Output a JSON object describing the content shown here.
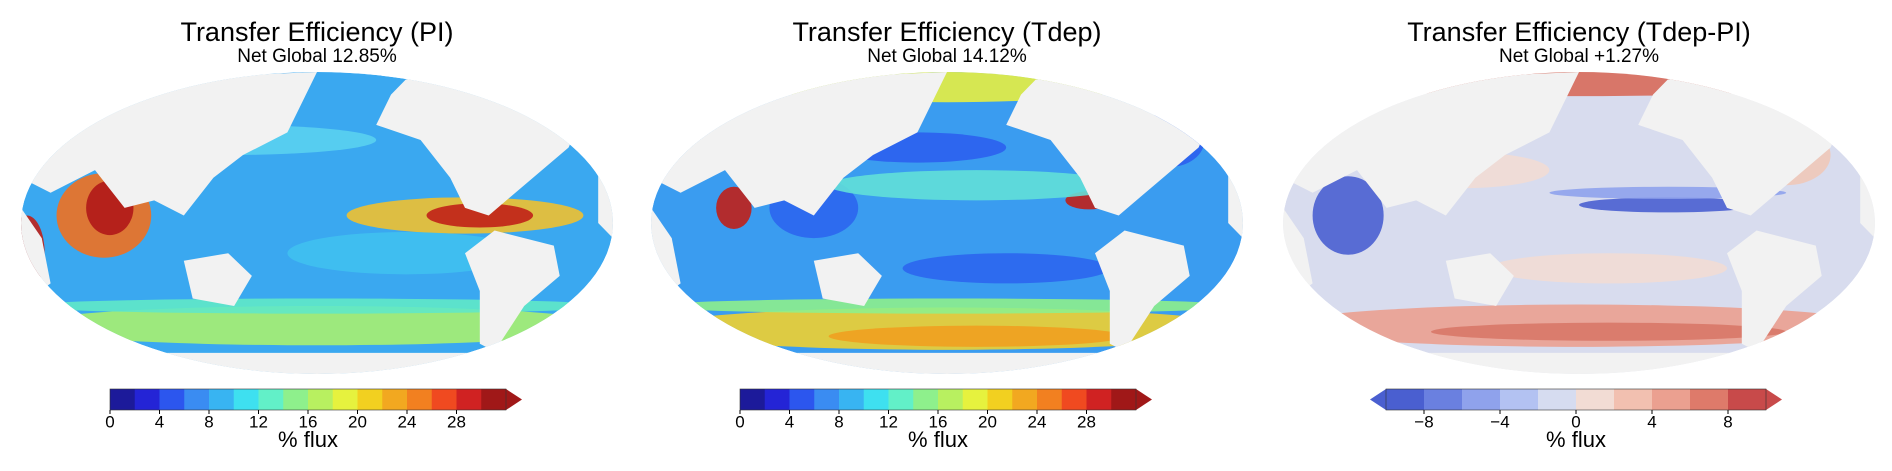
{
  "panels": [
    {
      "title": "Transfer Efficiency (PI)",
      "subtitle": "Net Global 12.85%",
      "colorbar": {
        "label": "% flux",
        "lim": [
          0,
          32
        ],
        "ticks": [
          0,
          4,
          8,
          12,
          16,
          20,
          24,
          28
        ],
        "extend": "max",
        "colors": [
          "#1c1a9a",
          "#2424d6",
          "#2c56ee",
          "#3a8cf2",
          "#38b4f2",
          "#3ee0f0",
          "#62f0c8",
          "#8ef08c",
          "#b8f060",
          "#e6f23e",
          "#f2d020",
          "#f2a820",
          "#f28020",
          "#f04a20",
          "#d02222",
          "#a01818"
        ]
      }
    },
    {
      "title": "Transfer Efficiency (Tdep)",
      "subtitle": "Net Global 14.12%",
      "colorbar": {
        "label": "% flux",
        "lim": [
          0,
          32
        ],
        "ticks": [
          0,
          4,
          8,
          12,
          16,
          20,
          24,
          28
        ],
        "extend": "max",
        "colors": [
          "#1c1a9a",
          "#2424d6",
          "#2c56ee",
          "#3a8cf2",
          "#38b4f2",
          "#3ee0f0",
          "#62f0c8",
          "#8ef08c",
          "#b8f060",
          "#e6f23e",
          "#f2d020",
          "#f2a820",
          "#f28020",
          "#f04a20",
          "#d02222",
          "#a01818"
        ]
      }
    },
    {
      "title": "Transfer Efficiency (Tdep-PI)",
      "subtitle": "Net Global +1.27%",
      "colorbar": {
        "label": "% flux",
        "lim": [
          -10,
          10
        ],
        "ticks": [
          {
            "value": -8,
            "label": "−8"
          },
          {
            "value": -4,
            "label": "−4"
          },
          0,
          4,
          8
        ],
        "extend": "both",
        "colors": [
          "#4a5fd0",
          "#6a80e0",
          "#8fa2ec",
          "#b3c2f2",
          "#d6dcf0",
          "#f2dcd4",
          "#f2c0b0",
          "#eba090",
          "#de7a6a",
          "#c84a4a"
        ]
      }
    }
  ]
}
